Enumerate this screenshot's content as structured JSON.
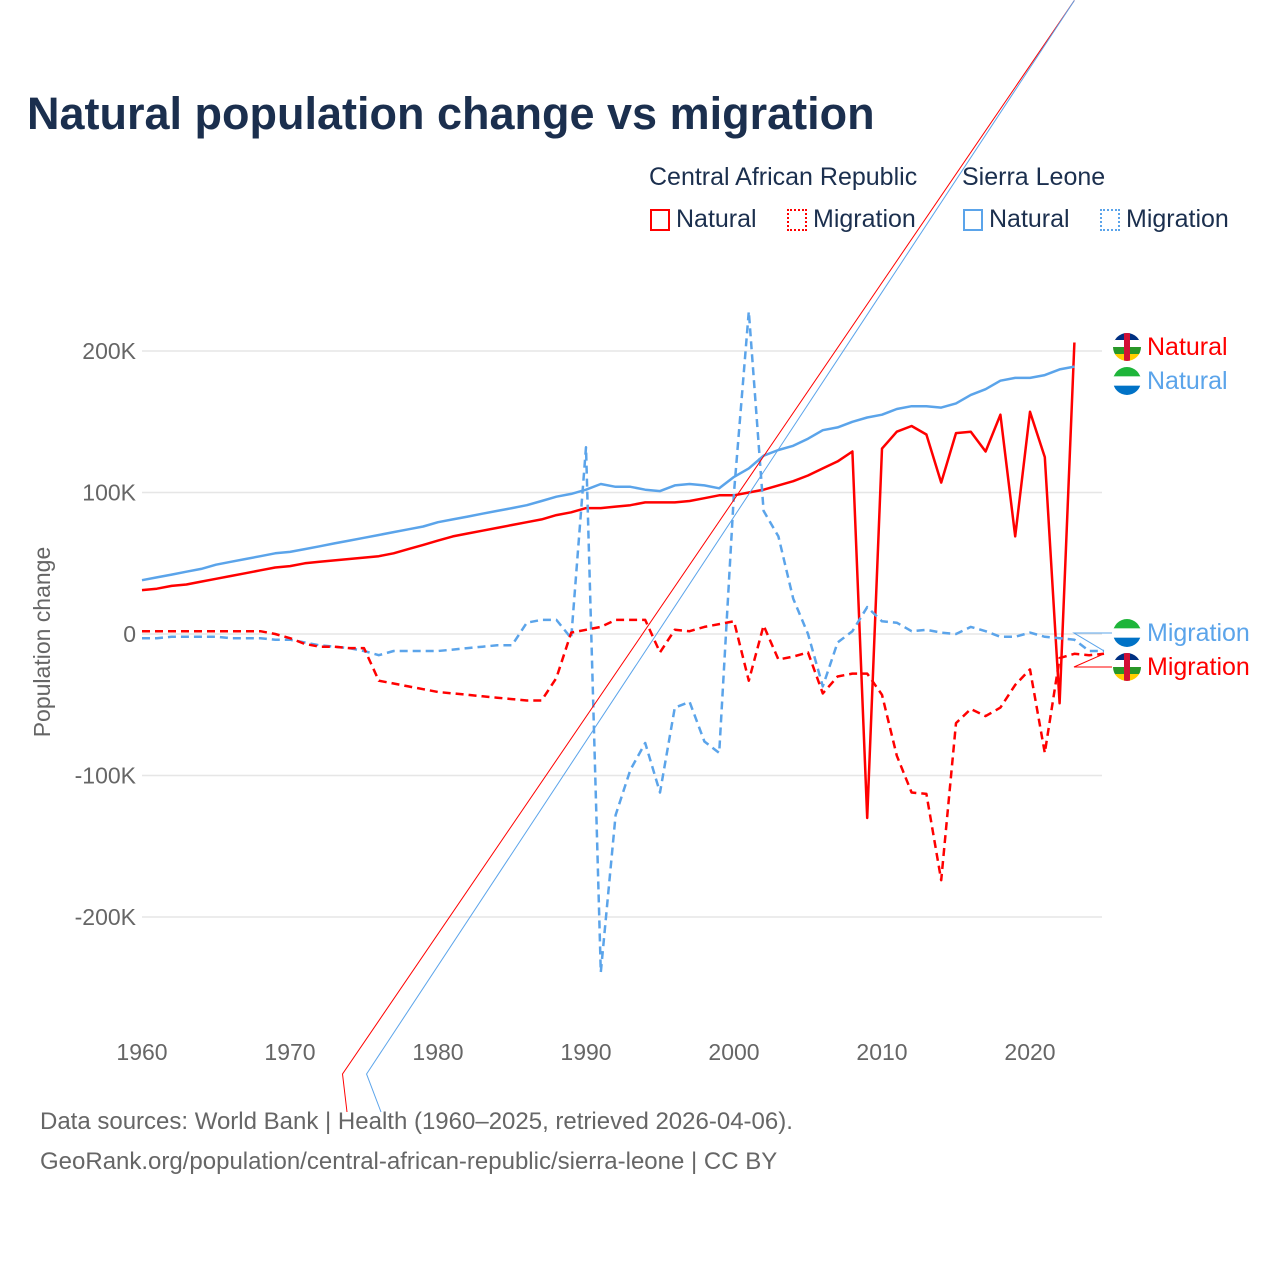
{
  "title": "Natural population change vs migration",
  "legend": {
    "groups": [
      {
        "name": "Central African Republic",
        "items": [
          "Natural",
          "Migration"
        ],
        "color": "#ff0000"
      },
      {
        "name": "Sierra Leone",
        "items": [
          "Natural",
          "Migration"
        ],
        "color": "#5ba4ea"
      }
    ]
  },
  "footer": {
    "line1": "Data sources: World Bank | Health (1960–2025, retrieved 2026-04-06).",
    "line2": "GeoRank.org/population/central-african-republic/sierra-leone | CC BY"
  },
  "chart_data": {
    "type": "line",
    "title": "Natural population change vs migration",
    "xlabel": "",
    "ylabel": "Population change",
    "xlim": [
      1960,
      2025
    ],
    "ylim": [
      -250000,
      250000
    ],
    "xticks": [
      "1960",
      "1970",
      "1980",
      "1990",
      "2000",
      "2010",
      "2020"
    ],
    "yticks": [
      {
        "value": 200000,
        "label": "200K"
      },
      {
        "value": 100000,
        "label": "100K"
      },
      {
        "value": 0,
        "label": "0"
      },
      {
        "value": -100000,
        "label": "-100K"
      },
      {
        "value": -200000,
        "label": "-200K"
      }
    ],
    "grid": true,
    "legend_position": "top-right",
    "series": [
      {
        "name": "Central African Republic Natural",
        "label": "Natural",
        "flag": "car",
        "color": "#ff0000",
        "dash": false,
        "start": 1960,
        "values": [
          31,
          32,
          34,
          35,
          37,
          39,
          41,
          43,
          45,
          47,
          48,
          50,
          51,
          52,
          53,
          54,
          55,
          57,
          60,
          63,
          66,
          69,
          71,
          73,
          75,
          77,
          79,
          81,
          84,
          86,
          89,
          89,
          90,
          91,
          93,
          93,
          93,
          94,
          96,
          98,
          98,
          100,
          102,
          105,
          108,
          112,
          117,
          122,
          129,
          -130,
          131,
          143,
          147,
          141,
          107,
          142,
          143,
          129,
          155,
          69,
          157,
          125,
          -49,
          206
        ]
      },
      {
        "name": "Sierra Leone Natural",
        "label": "Natural",
        "flag": "sl",
        "color": "#5ba4ea",
        "dash": false,
        "start": 1960,
        "values": [
          38,
          40,
          42,
          44,
          46,
          49,
          51,
          53,
          55,
          57,
          58,
          60,
          62,
          64,
          66,
          68,
          70,
          72,
          74,
          76,
          79,
          81,
          83,
          85,
          87,
          89,
          91,
          94,
          97,
          99,
          102,
          106,
          104,
          104,
          102,
          101,
          105,
          106,
          105,
          103,
          111,
          117,
          126,
          130,
          133,
          138,
          144,
          146,
          150,
          153,
          155,
          159,
          161,
          161,
          160,
          163,
          169,
          173,
          179,
          181,
          181,
          183,
          187,
          189
        ]
      },
      {
        "name": "Sierra Leone Migration",
        "label": "Migration",
        "flag": "sl",
        "color": "#5ba4ea",
        "dash": true,
        "start": 1960,
        "values": [
          -3,
          -3,
          -2,
          -2,
          -2,
          -2,
          -3,
          -3,
          -3,
          -4,
          -4,
          -6,
          -8,
          -9,
          -10,
          -12,
          -15,
          -12,
          -12,
          -12,
          -12,
          -11,
          -10,
          -9,
          -8,
          -8,
          8,
          10,
          10,
          -3,
          132,
          -239,
          -128,
          -96,
          -77,
          -112,
          -52,
          -48,
          -76,
          -84,
          100,
          228,
          87,
          69,
          25,
          0,
          -37,
          -6,
          2,
          19,
          9,
          8,
          2,
          3,
          1,
          0,
          5,
          2,
          -2,
          -2,
          1,
          -2,
          -3,
          -4,
          -12,
          -12
        ]
      },
      {
        "name": "Central African Republic Migration",
        "label": "Migration",
        "flag": "car",
        "color": "#ff0000",
        "dash": true,
        "start": 1960,
        "values": [
          2,
          2,
          2,
          2,
          2,
          2,
          2,
          2,
          2,
          0,
          -3,
          -7,
          -9,
          -9,
          -10,
          -10,
          -33,
          -35,
          -37,
          -39,
          -41,
          -42,
          -43,
          -44,
          -45,
          -46,
          -47,
          -47,
          -31,
          1,
          3,
          5,
          10,
          10,
          10,
          -13,
          3,
          2,
          5,
          7,
          9,
          -33,
          6,
          -18,
          -16,
          -13,
          -42,
          -30,
          -28,
          -28,
          -43,
          -86,
          -112,
          -113,
          -174,
          -63,
          -53,
          -58,
          -52,
          -36,
          -25,
          -84,
          -17,
          -14,
          -15,
          -14
        ]
      }
    ],
    "value_unit": "thousands"
  }
}
